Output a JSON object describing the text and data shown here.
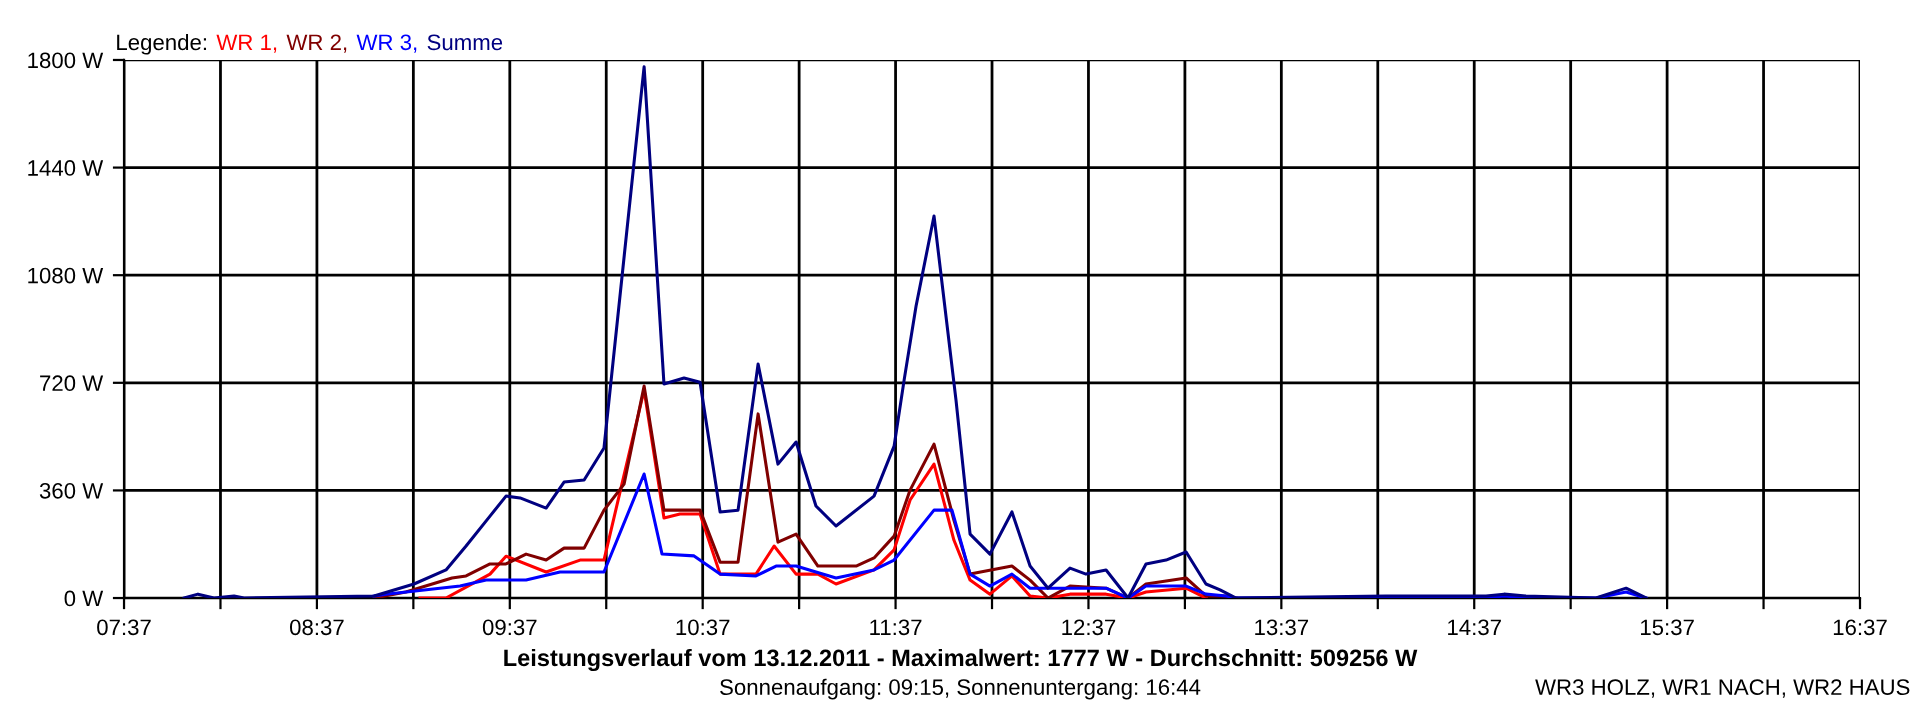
{
  "chart_data": {
    "type": "line",
    "title": "Leistungsverlauf vom 13.12.2011 - Maximalwert: 1777 W - Durchschnitt: 509256 W",
    "subtitle": "Sonnenaufgang: 09:15, Sonnenuntergang: 16:44",
    "legend_title": "Legende:",
    "legend": "top left",
    "grid": true,
    "marker": "none",
    "line_style": "solid",
    "annotations": [
      "WR3 HOLZ, WR1 NACH, WR2 HAUS"
    ],
    "xlim": [
      7.6167,
      16.6167
    ],
    "xticks": [
      {
        "value": 7.6167,
        "label": "07:37"
      },
      {
        "value": 8.1167,
        "label": null
      },
      {
        "value": 8.6167,
        "label": "08:37"
      },
      {
        "value": 9.1167,
        "label": null
      },
      {
        "value": 9.6167,
        "label": "09:37"
      },
      {
        "value": 10.1167,
        "label": null
      },
      {
        "value": 10.6167,
        "label": "10:37"
      },
      {
        "value": 11.1167,
        "label": null
      },
      {
        "value": 11.6167,
        "label": "11:37"
      },
      {
        "value": 12.1167,
        "label": null
      },
      {
        "value": 12.6167,
        "label": "12:37"
      },
      {
        "value": 13.1167,
        "label": null
      },
      {
        "value": 13.6167,
        "label": "13:37"
      },
      {
        "value": 14.1167,
        "label": null
      },
      {
        "value": 14.6167,
        "label": "14:37"
      },
      {
        "value": 15.1167,
        "label": null
      },
      {
        "value": 15.6167,
        "label": "15:37"
      },
      {
        "value": 16.1167,
        "label": null
      },
      {
        "value": 16.6167,
        "label": "16:37"
      }
    ],
    "ylim": [
      0,
      1800
    ],
    "yticks": [
      {
        "value": 0,
        "label": "0 W"
      },
      {
        "value": 360,
        "label": "360 W"
      },
      {
        "value": 720,
        "label": "720 W"
      },
      {
        "value": 1080,
        "label": "1080 W"
      },
      {
        "value": 1440,
        "label": "1440 W"
      },
      {
        "value": 1800,
        "label": "1800 W"
      }
    ],
    "series": [
      {
        "name": "WR 1,",
        "color": "#ff0000",
        "x": [
          9.151,
          9.286,
          9.514,
          9.597,
          9.805,
          9.981,
          10.105,
          10.313,
          10.416,
          10.499,
          10.603,
          10.707,
          10.893,
          10.987,
          11.101,
          11.214,
          11.308,
          11.505,
          11.609,
          11.692,
          11.816,
          11.919,
          12.003,
          12.106,
          12.22,
          12.314,
          12.407,
          12.521,
          12.708,
          12.822,
          12.915,
          13.123,
          13.226
        ],
        "values": [
          0,
          0,
          80,
          140,
          87,
          127,
          127,
          696,
          268,
          281,
          281,
          80,
          80,
          174,
          80,
          80,
          47,
          94,
          161,
          328,
          448,
          194,
          60,
          13,
          74,
          7,
          0,
          13,
          13,
          0,
          20,
          33,
          0
        ]
      },
      {
        "name": "WR 2,",
        "color": "#800000",
        "x": [
          8.913,
          9.078,
          9.317,
          9.39,
          9.514,
          9.597,
          9.701,
          9.805,
          9.898,
          10.002,
          10.105,
          10.209,
          10.313,
          10.416,
          10.603,
          10.707,
          10.8,
          10.904,
          11.007,
          11.101,
          11.214,
          11.412,
          11.505,
          11.609,
          11.692,
          11.816,
          11.919,
          12.003,
          12.22,
          12.314,
          12.407,
          12.521,
          12.708,
          12.822,
          12.915,
          13.123,
          13.226,
          13.33,
          13.382
        ],
        "values": [
          0,
          20,
          67,
          74,
          114,
          114,
          147,
          127,
          167,
          167,
          294,
          381,
          709,
          294,
          294,
          120,
          120,
          616,
          187,
          214,
          107,
          107,
          134,
          207,
          361,
          515,
          261,
          80,
          107,
          60,
          0,
          40,
          33,
          0,
          47,
          67,
          7,
          7,
          0
        ]
      },
      {
        "name": "WR 3,",
        "color": "#0000ff",
        "x": [
          8.913,
          8.975,
          9.359,
          9.494,
          9.701,
          9.877,
          10.105,
          10.313,
          10.406,
          10.572,
          10.707,
          10.893,
          10.997,
          11.101,
          11.204,
          11.308,
          11.505,
          11.609,
          11.816,
          11.909,
          12.003,
          12.106,
          12.22,
          12.314,
          12.521,
          12.708,
          12.822,
          12.915,
          13.123,
          13.226,
          13.33,
          13.382,
          14.678,
          14.771,
          14.885,
          15.248,
          15.404,
          15.508
        ],
        "values": [
          7,
          13,
          40,
          60,
          60,
          87,
          87,
          415,
          147,
          141,
          80,
          74,
          107,
          107,
          87,
          67,
          94,
          127,
          294,
          294,
          80,
          40,
          80,
          33,
          33,
          33,
          0,
          40,
          40,
          13,
          7,
          0,
          0,
          7,
          0,
          0,
          20,
          0
        ]
      },
      {
        "name": "Summe",
        "color": "#000080",
        "x": [
          7.928,
          8.0,
          8.083,
          8.187,
          8.239,
          8.913,
          9.12,
          9.286,
          9.39,
          9.514,
          9.597,
          9.67,
          9.805,
          9.898,
          10.002,
          10.105,
          10.313,
          10.416,
          10.52,
          10.603,
          10.707,
          10.8,
          10.904,
          11.007,
          11.101,
          11.204,
          11.308,
          11.505,
          11.609,
          11.661,
          11.723,
          11.816,
          11.93,
          12.003,
          12.106,
          12.22,
          12.314,
          12.407,
          12.521,
          12.604,
          12.708,
          12.822,
          12.915,
          13.019,
          13.123,
          13.226,
          13.299,
          13.382,
          14.159,
          14.46,
          14.678,
          14.771,
          14.885,
          15.248,
          15.404,
          15.508
        ],
        "values": [
          0,
          13,
          0,
          7,
          0,
          7,
          47,
          94,
          174,
          274,
          341,
          335,
          301,
          388,
          395,
          502,
          1777,
          716,
          736,
          722,
          288,
          294,
          783,
          448,
          522,
          308,
          241,
          341,
          508,
          729,
          977,
          1278,
          662,
          214,
          147,
          288,
          107,
          33,
          100,
          80,
          94,
          0,
          114,
          127,
          154,
          47,
          27,
          0,
          7,
          7,
          7,
          13,
          7,
          0,
          33,
          0
        ]
      }
    ]
  }
}
